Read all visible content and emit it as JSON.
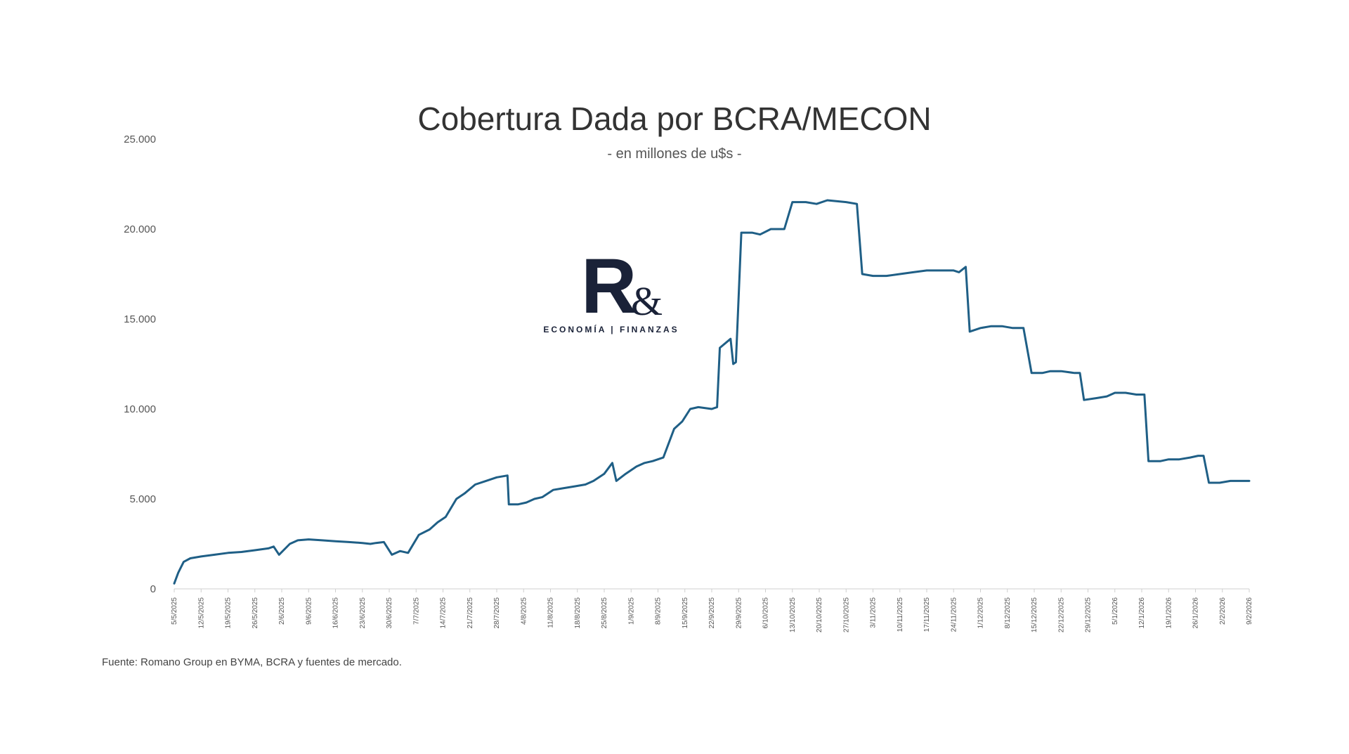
{
  "chart_data": {
    "type": "line",
    "title": "Cobertura Dada por BCRA/MECON",
    "subtitle": "- en millones de u$s -",
    "source": "Fuente: Romano Group en BYMA, BCRA y fuentes de mercado.",
    "ylim": [
      0,
      25000
    ],
    "yticks": [
      "0",
      "5.000",
      "10.000",
      "15.000",
      "20.000",
      "25.000"
    ],
    "ytick_values": [
      0,
      5000,
      10000,
      15000,
      20000,
      25000
    ],
    "grid": false,
    "line_color": "#1f5f86",
    "x_categories": [
      "5/5/2025",
      "12/5/2025",
      "19/5/2025",
      "26/5/2025",
      "2/6/2025",
      "9/6/2025",
      "16/6/2025",
      "23/6/2025",
      "30/6/2025",
      "7/7/2025",
      "14/7/2025",
      "21/7/2025",
      "28/7/2025",
      "4/8/2025",
      "11/8/2025",
      "18/8/2025",
      "25/8/2025",
      "1/9/2025",
      "8/9/2025",
      "15/9/2025",
      "22/9/2025",
      "29/9/2025",
      "6/10/2025",
      "13/10/2025",
      "20/10/2025",
      "27/10/2025",
      "3/11/2025",
      "10/11/2025",
      "17/11/2025",
      "24/11/2025",
      "1/12/2025",
      "8/12/2025",
      "15/12/2025",
      "22/12/2025",
      "29/12/2025",
      "5/1/2026",
      "12/1/2026",
      "19/1/2026",
      "26/1/2026",
      "2/2/2026",
      "9/2/2026"
    ],
    "series": [
      {
        "points": [
          [
            0,
            300
          ],
          [
            0.15,
            900
          ],
          [
            0.35,
            1500
          ],
          [
            0.6,
            1700
          ],
          [
            1,
            1800
          ],
          [
            1.5,
            1900
          ],
          [
            2,
            2000
          ],
          [
            2.5,
            2050
          ],
          [
            3,
            2150
          ],
          [
            3.5,
            2250
          ],
          [
            3.7,
            2350
          ],
          [
            3.9,
            1900
          ],
          [
            4.3,
            2500
          ],
          [
            4.6,
            2700
          ],
          [
            5,
            2750
          ],
          [
            5.5,
            2700
          ],
          [
            6,
            2650
          ],
          [
            6.5,
            2600
          ],
          [
            7,
            2550
          ],
          [
            7.3,
            2500
          ],
          [
            7.5,
            2550
          ],
          [
            7.8,
            2600
          ],
          [
            8.1,
            1900
          ],
          [
            8.4,
            2100
          ],
          [
            8.7,
            2000
          ],
          [
            9.1,
            3000
          ],
          [
            9.5,
            3300
          ],
          [
            9.8,
            3700
          ],
          [
            10.1,
            4000
          ],
          [
            10.5,
            5000
          ],
          [
            10.8,
            5300
          ],
          [
            11.2,
            5800
          ],
          [
            11.6,
            6000
          ],
          [
            12,
            6200
          ],
          [
            12.4,
            6300
          ],
          [
            12.45,
            4700
          ],
          [
            12.8,
            4700
          ],
          [
            13.1,
            4800
          ],
          [
            13.4,
            5000
          ],
          [
            13.7,
            5100
          ],
          [
            14.1,
            5500
          ],
          [
            14.5,
            5600
          ],
          [
            14.9,
            5700
          ],
          [
            15.3,
            5800
          ],
          [
            15.6,
            6000
          ],
          [
            16,
            6400
          ],
          [
            16.3,
            7000
          ],
          [
            16.45,
            6000
          ],
          [
            16.8,
            6400
          ],
          [
            17.2,
            6800
          ],
          [
            17.5,
            7000
          ],
          [
            17.8,
            7100
          ],
          [
            18.2,
            7300
          ],
          [
            18.6,
            8900
          ],
          [
            18.9,
            9300
          ],
          [
            19.2,
            10000
          ],
          [
            19.5,
            10100
          ],
          [
            20,
            10000
          ],
          [
            20.2,
            10100
          ],
          [
            20.3,
            13400
          ],
          [
            20.7,
            13900
          ],
          [
            20.8,
            12500
          ],
          [
            20.9,
            12600
          ],
          [
            21.1,
            19800
          ],
          [
            21.5,
            19800
          ],
          [
            21.8,
            19700
          ],
          [
            22.2,
            20000
          ],
          [
            22.7,
            20000
          ],
          [
            23,
            21500
          ],
          [
            23.5,
            21500
          ],
          [
            23.9,
            21400
          ],
          [
            24.3,
            21600
          ],
          [
            25,
            21500
          ],
          [
            25.4,
            21400
          ],
          [
            25.6,
            17500
          ],
          [
            26,
            17400
          ],
          [
            26.5,
            17400
          ],
          [
            27,
            17500
          ],
          [
            27.5,
            17600
          ],
          [
            28,
            17700
          ],
          [
            28.5,
            17700
          ],
          [
            29,
            17700
          ],
          [
            29.2,
            17600
          ],
          [
            29.45,
            17900
          ],
          [
            29.6,
            14300
          ],
          [
            30,
            14500
          ],
          [
            30.4,
            14600
          ],
          [
            30.8,
            14600
          ],
          [
            31.2,
            14500
          ],
          [
            31.6,
            14500
          ],
          [
            31.9,
            12000
          ],
          [
            32.3,
            12000
          ],
          [
            32.6,
            12100
          ],
          [
            33,
            12100
          ],
          [
            33.5,
            12000
          ],
          [
            33.7,
            12000
          ],
          [
            33.85,
            10500
          ],
          [
            34.3,
            10600
          ],
          [
            34.7,
            10700
          ],
          [
            35,
            10900
          ],
          [
            35.4,
            10900
          ],
          [
            35.8,
            10800
          ],
          [
            36.1,
            10800
          ],
          [
            36.25,
            7100
          ],
          [
            36.7,
            7100
          ],
          [
            37,
            7200
          ],
          [
            37.4,
            7200
          ],
          [
            37.8,
            7300
          ],
          [
            38.1,
            7400
          ],
          [
            38.3,
            7400
          ],
          [
            38.5,
            5900
          ],
          [
            38.9,
            5900
          ],
          [
            39.3,
            6000
          ],
          [
            39.7,
            6000
          ],
          [
            40,
            6000
          ]
        ]
      }
    ]
  },
  "logo": {
    "letter": "R",
    "symbol": "&",
    "tagline": "ECONOMÍA | FINANZAS"
  }
}
